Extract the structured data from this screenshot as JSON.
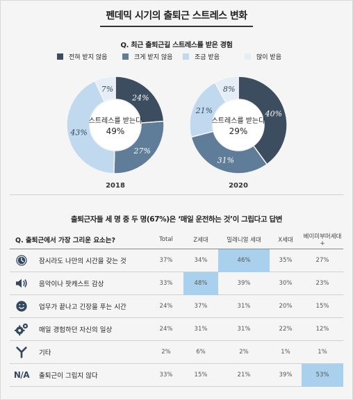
{
  "title": "펜데믹 시기의 출퇴근 스트레스 변화",
  "colors": {
    "dark": "#3d4d60",
    "mid": "#5f7d99",
    "light": "#c1d9ef",
    "lightest": "#e5eef7",
    "highlight": "#a9d0ec"
  },
  "chart_data": {
    "type": "pie",
    "title": "Q. 최근 출퇴근길 스트레스를 받은 경험",
    "legend": [
      "전혀 받지 않음",
      "크게 받지 않음",
      "조금 받음",
      "많이 받음"
    ],
    "charts": [
      {
        "year": "2018",
        "center_label": "스트레스를 받는다",
        "center_value": "49%",
        "values": [
          24,
          27,
          43,
          7
        ]
      },
      {
        "year": "2020",
        "center_label": "스트레스를 받는다",
        "center_value": "29%",
        "values": [
          40,
          31,
          21,
          8
        ]
      }
    ]
  },
  "survey": {
    "headline": "출퇴근자들 세 명 중 두 명(67%)은 ‘매일 운전하는 것’이 그립다고 답변",
    "question": "Q. 출퇴근에서 가장 그리운 요소는?",
    "columns": [
      "Total",
      "Z세대",
      "밀레니얼 세대",
      "X세대",
      "베이미부머세대 +"
    ],
    "rows": [
      {
        "icon": "clock-icon",
        "label": "잠시라도 나만의 시간을 갖는 것",
        "values": [
          "37%",
          "34%",
          "46%",
          "35%",
          "27%"
        ],
        "highlight": 2
      },
      {
        "icon": "speaker-icon",
        "label": "음악이나 팟캐스트 감상",
        "values": [
          "33%",
          "48%",
          "39%",
          "30%",
          "23%"
        ],
        "highlight": 1
      },
      {
        "icon": "smile-icon",
        "label": "업무가 끝나고 긴장을 푸는 시간",
        "values": [
          "24%",
          "37%",
          "31%",
          "20%",
          "15%"
        ],
        "highlight": -1
      },
      {
        "icon": "gears-icon",
        "label": "매일 경험하던 자신의 일상",
        "values": [
          "24%",
          "31%",
          "31%",
          "22%",
          "12%"
        ],
        "highlight": -1
      },
      {
        "icon": "fork-icon",
        "label": "기타",
        "values": [
          "2%",
          "6%",
          "2%",
          "1%",
          "1%"
        ],
        "highlight": -1
      },
      {
        "icon": "na-icon",
        "icon_text": "N/A",
        "label": "출퇴근이 그립지 않다",
        "values": [
          "33%",
          "15%",
          "21%",
          "39%",
          "53%"
        ],
        "highlight": 4
      }
    ]
  }
}
